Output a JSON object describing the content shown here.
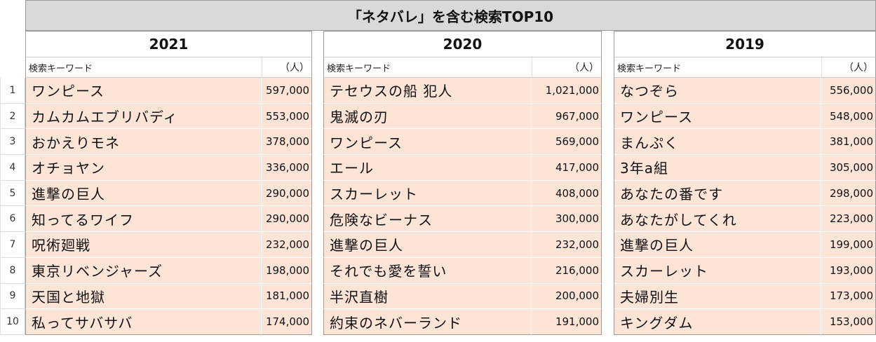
{
  "title": "「ネタバレ」を含む検索TOP10",
  "keyword_header": "検索キーワード",
  "unit_header": "（人）",
  "ranks": [
    "1",
    "2",
    "3",
    "4",
    "5",
    "6",
    "7",
    "8",
    "9",
    "10"
  ],
  "years": [
    {
      "year": "2021",
      "rows": [
        {
          "keyword": "ワンピース",
          "count": "597,000"
        },
        {
          "keyword": "カムカムエブリバディ",
          "count": "553,000"
        },
        {
          "keyword": "おかえりモネ",
          "count": "378,000"
        },
        {
          "keyword": "オチョヤン",
          "count": "336,000"
        },
        {
          "keyword": "進撃の巨人",
          "count": "290,000"
        },
        {
          "keyword": "知ってるワイフ",
          "count": "290,000"
        },
        {
          "keyword": "呪術廻戦",
          "count": "232,000"
        },
        {
          "keyword": "東京リベンジャーズ",
          "count": "198,000"
        },
        {
          "keyword": "天国と地獄",
          "count": "181,000"
        },
        {
          "keyword": "私ってサバサバ",
          "count": "174,000"
        }
      ]
    },
    {
      "year": "2020",
      "rows": [
        {
          "keyword": "テセウスの船 犯人",
          "count": "1,021,000"
        },
        {
          "keyword": "鬼滅の刃",
          "count": "967,000"
        },
        {
          "keyword": "ワンピース",
          "count": "569,000"
        },
        {
          "keyword": "エール",
          "count": "417,000"
        },
        {
          "keyword": "スカーレット",
          "count": "408,000"
        },
        {
          "keyword": "危険なビーナス",
          "count": "300,000"
        },
        {
          "keyword": "進撃の巨人",
          "count": "232,000"
        },
        {
          "keyword": "それでも愛を誓い",
          "count": "216,000"
        },
        {
          "keyword": "半沢直樹",
          "count": "200,000"
        },
        {
          "keyword": "約束のネバーランド",
          "count": "191,000"
        }
      ]
    },
    {
      "year": "2019",
      "rows": [
        {
          "keyword": "なつぞら",
          "count": "556,000"
        },
        {
          "keyword": "ワンピース",
          "count": "548,000"
        },
        {
          "keyword": "まんぷく",
          "count": "381,000"
        },
        {
          "keyword": "3年a組",
          "count": "305,000"
        },
        {
          "keyword": "あなたの番です",
          "count": "298,000"
        },
        {
          "keyword": "あなたがしてくれ",
          "count": "223,000"
        },
        {
          "keyword": "進撃の巨人",
          "count": "199,000"
        },
        {
          "keyword": "スカーレット",
          "count": "193,000"
        },
        {
          "keyword": "夫婦別生",
          "count": "173,000"
        },
        {
          "keyword": "キングダム",
          "count": "153,000"
        }
      ]
    }
  ]
}
